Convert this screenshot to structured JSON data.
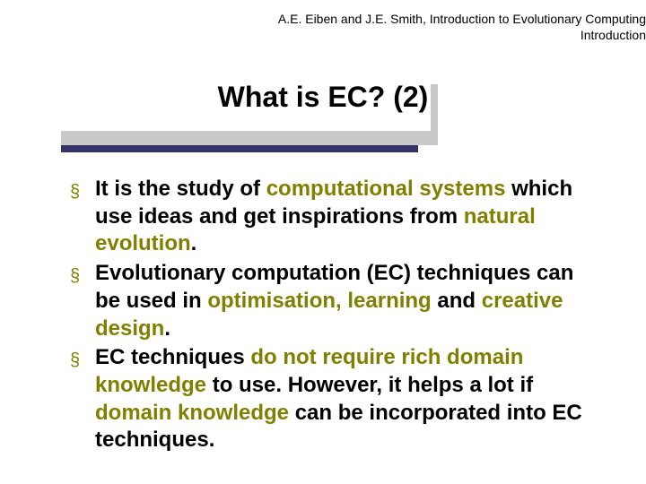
{
  "colors": {
    "background": "#ffffff",
    "text": "#000000",
    "olive": "#808000",
    "shadow": "#c9c9c9",
    "underline": "#333366"
  },
  "typography": {
    "header_fontsize": 14,
    "title_fontsize": 32,
    "body_fontsize": 24,
    "font_family": "Arial"
  },
  "header": {
    "line1": "A.E. Eiben and J.E. Smith, Introduction to Evolutionary Computing",
    "line2": "Introduction"
  },
  "title": "What is EC? (2)",
  "bullets": [
    {
      "runs": [
        {
          "t": "It is the study of ",
          "s": "bold"
        },
        {
          "t": "computational systems",
          "s": "olive"
        },
        {
          "t": " which use ideas and get inspirations from ",
          "s": "bold"
        },
        {
          "t": "natural evolution",
          "s": "olive"
        },
        {
          "t": ".",
          "s": "bold"
        }
      ]
    },
    {
      "runs": [
        {
          "t": "Evolutionary computation (EC) techniques can be used in ",
          "s": "bold"
        },
        {
          "t": "optimisation, learning",
          "s": "olive"
        },
        {
          "t": " and ",
          "s": "bold"
        },
        {
          "t": "creative design",
          "s": "olive"
        },
        {
          "t": ".",
          "s": "bold"
        }
      ]
    },
    {
      "runs": [
        {
          "t": "EC techniques ",
          "s": "bold"
        },
        {
          "t": "do not require rich domain knowledge",
          "s": "olive"
        },
        {
          "t": " to use. However, it helps a lot if ",
          "s": "bold"
        },
        {
          "t": "domain knowledge",
          "s": "olive"
        },
        {
          "t": " can be incorporated into EC techniques.",
          "s": "bold"
        }
      ]
    }
  ],
  "bullet_marker": "§"
}
